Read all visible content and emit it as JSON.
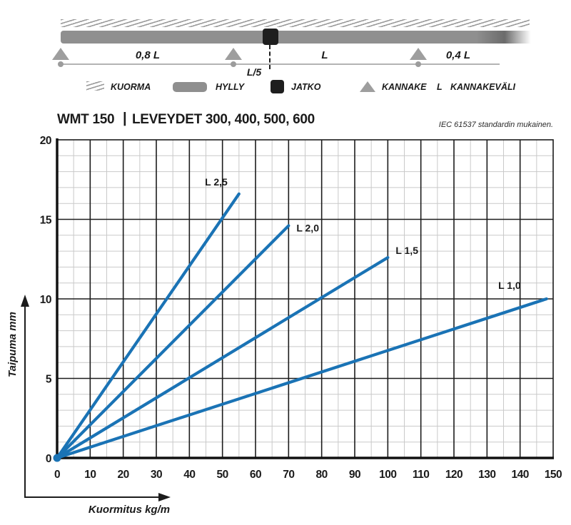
{
  "diagram": {
    "span_label_1": "0,8 L",
    "span_label_2": "L",
    "span_label_3": "0,4 L",
    "joint_offset_label": "L/5"
  },
  "legend": {
    "items": [
      {
        "icon": "load-hatch-icon",
        "label": "KUORMA"
      },
      {
        "icon": "shelf-icon",
        "label": "HYLLY"
      },
      {
        "icon": "joint-icon",
        "label": "JATKO"
      },
      {
        "icon": "support-icon",
        "label": "KANNAKE"
      },
      {
        "icon": "span-letter-icon",
        "symbol": "L",
        "label": "KANNAKEVÄLI"
      }
    ]
  },
  "header": {
    "model": "WMT 150",
    "separator": "|",
    "subtitle": "LEVEYDET 300, 400, 500, 600",
    "standard_note": "IEC 61537 standardin mukainen."
  },
  "chart_data": {
    "type": "line",
    "title": "WMT 150 | LEVEYDET 300, 400, 500, 600",
    "xlabel": "Kuormitus kg/m",
    "ylabel": "Taipuma mm",
    "xlim": [
      0,
      150
    ],
    "ylim": [
      0,
      20
    ],
    "xticks": [
      0,
      10,
      20,
      30,
      40,
      50,
      60,
      70,
      80,
      90,
      100,
      110,
      120,
      130,
      140,
      150
    ],
    "yticks": [
      0,
      5,
      10,
      15,
      20
    ],
    "x_minor_step": 5,
    "y_minor_step": 1,
    "grid": true,
    "legend_position": "inline-labels",
    "series": [
      {
        "name": "L 2,5",
        "x": [
          0,
          55
        ],
        "y": [
          0,
          16.6
        ]
      },
      {
        "name": "L 2,0",
        "x": [
          0,
          70
        ],
        "y": [
          0,
          14.6
        ]
      },
      {
        "name": "L 1,5",
        "x": [
          0,
          100
        ],
        "y": [
          0,
          12.6
        ]
      },
      {
        "name": "L 1,0",
        "x": [
          0,
          148
        ],
        "y": [
          0,
          10.0
        ]
      }
    ],
    "colors": {
      "line": "#1a73b5",
      "grid_minor": "#c9c9c9",
      "grid_major": "#1c1c1c",
      "axis": "#111111",
      "beam_gray": "#8f8f8f",
      "support_gray": "#9e9e9e",
      "joint_black": "#1e1e1e"
    }
  }
}
